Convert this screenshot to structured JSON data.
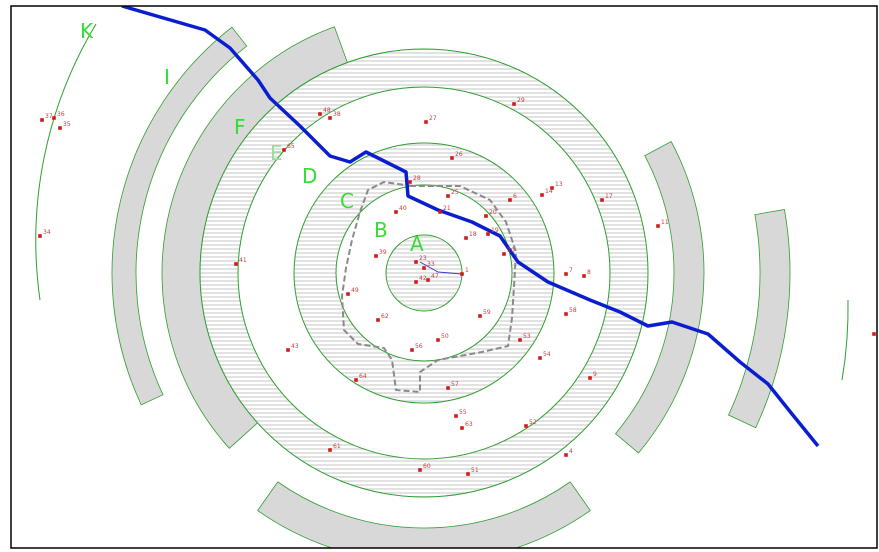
{
  "colors": {
    "ring_stroke": "#2e9e2e",
    "zone_label": "#33dd33",
    "zone_label_faded": "#99dd99",
    "river": "#0a1ed0",
    "band_fill": "#d8d8d8",
    "hatch": "#e2e2e2",
    "marker": "#d21a1a",
    "path": "#8a8a8a",
    "frame": "#000000"
  },
  "zones": [
    {
      "id": "A",
      "label": "A"
    },
    {
      "id": "B",
      "label": "B"
    },
    {
      "id": "C",
      "label": "C"
    },
    {
      "id": "D",
      "label": "D"
    },
    {
      "id": "E",
      "label": "E"
    },
    {
      "id": "F",
      "label": "F"
    },
    {
      "id": "I",
      "label": "I"
    },
    {
      "id": "K",
      "label": "K"
    }
  ],
  "sites": [
    {
      "label": "1"
    },
    {
      "label": "4"
    },
    {
      "label": "6"
    },
    {
      "label": "7"
    },
    {
      "label": "8"
    },
    {
      "label": "9"
    },
    {
      "label": "10"
    },
    {
      "label": "11"
    },
    {
      "label": "13"
    },
    {
      "label": "14"
    },
    {
      "label": "17"
    },
    {
      "label": "18"
    },
    {
      "label": "19"
    },
    {
      "label": "20"
    },
    {
      "label": "21"
    },
    {
      "label": "23"
    },
    {
      "label": "25"
    },
    {
      "label": "26"
    },
    {
      "label": "27"
    },
    {
      "label": "28"
    },
    {
      "label": "29"
    },
    {
      "label": "30"
    },
    {
      "label": "33"
    },
    {
      "label": "34"
    },
    {
      "label": "35"
    },
    {
      "label": "36"
    },
    {
      "label": "37"
    },
    {
      "label": "38"
    },
    {
      "label": "39"
    },
    {
      "label": "40"
    },
    {
      "label": "41"
    },
    {
      "label": "42"
    },
    {
      "label": "43"
    },
    {
      "label": "47"
    },
    {
      "label": "48"
    },
    {
      "label": "49"
    },
    {
      "label": "50"
    },
    {
      "label": "51"
    },
    {
      "label": "52"
    },
    {
      "label": "53"
    },
    {
      "label": "54"
    },
    {
      "label": "55"
    },
    {
      "label": "56"
    },
    {
      "label": "57"
    },
    {
      "label": "58"
    },
    {
      "label": "59"
    },
    {
      "label": "60"
    },
    {
      "label": "61"
    },
    {
      "label": "62"
    },
    {
      "label": "63"
    },
    {
      "label": "64"
    },
    {
      "label": "65"
    }
  ]
}
